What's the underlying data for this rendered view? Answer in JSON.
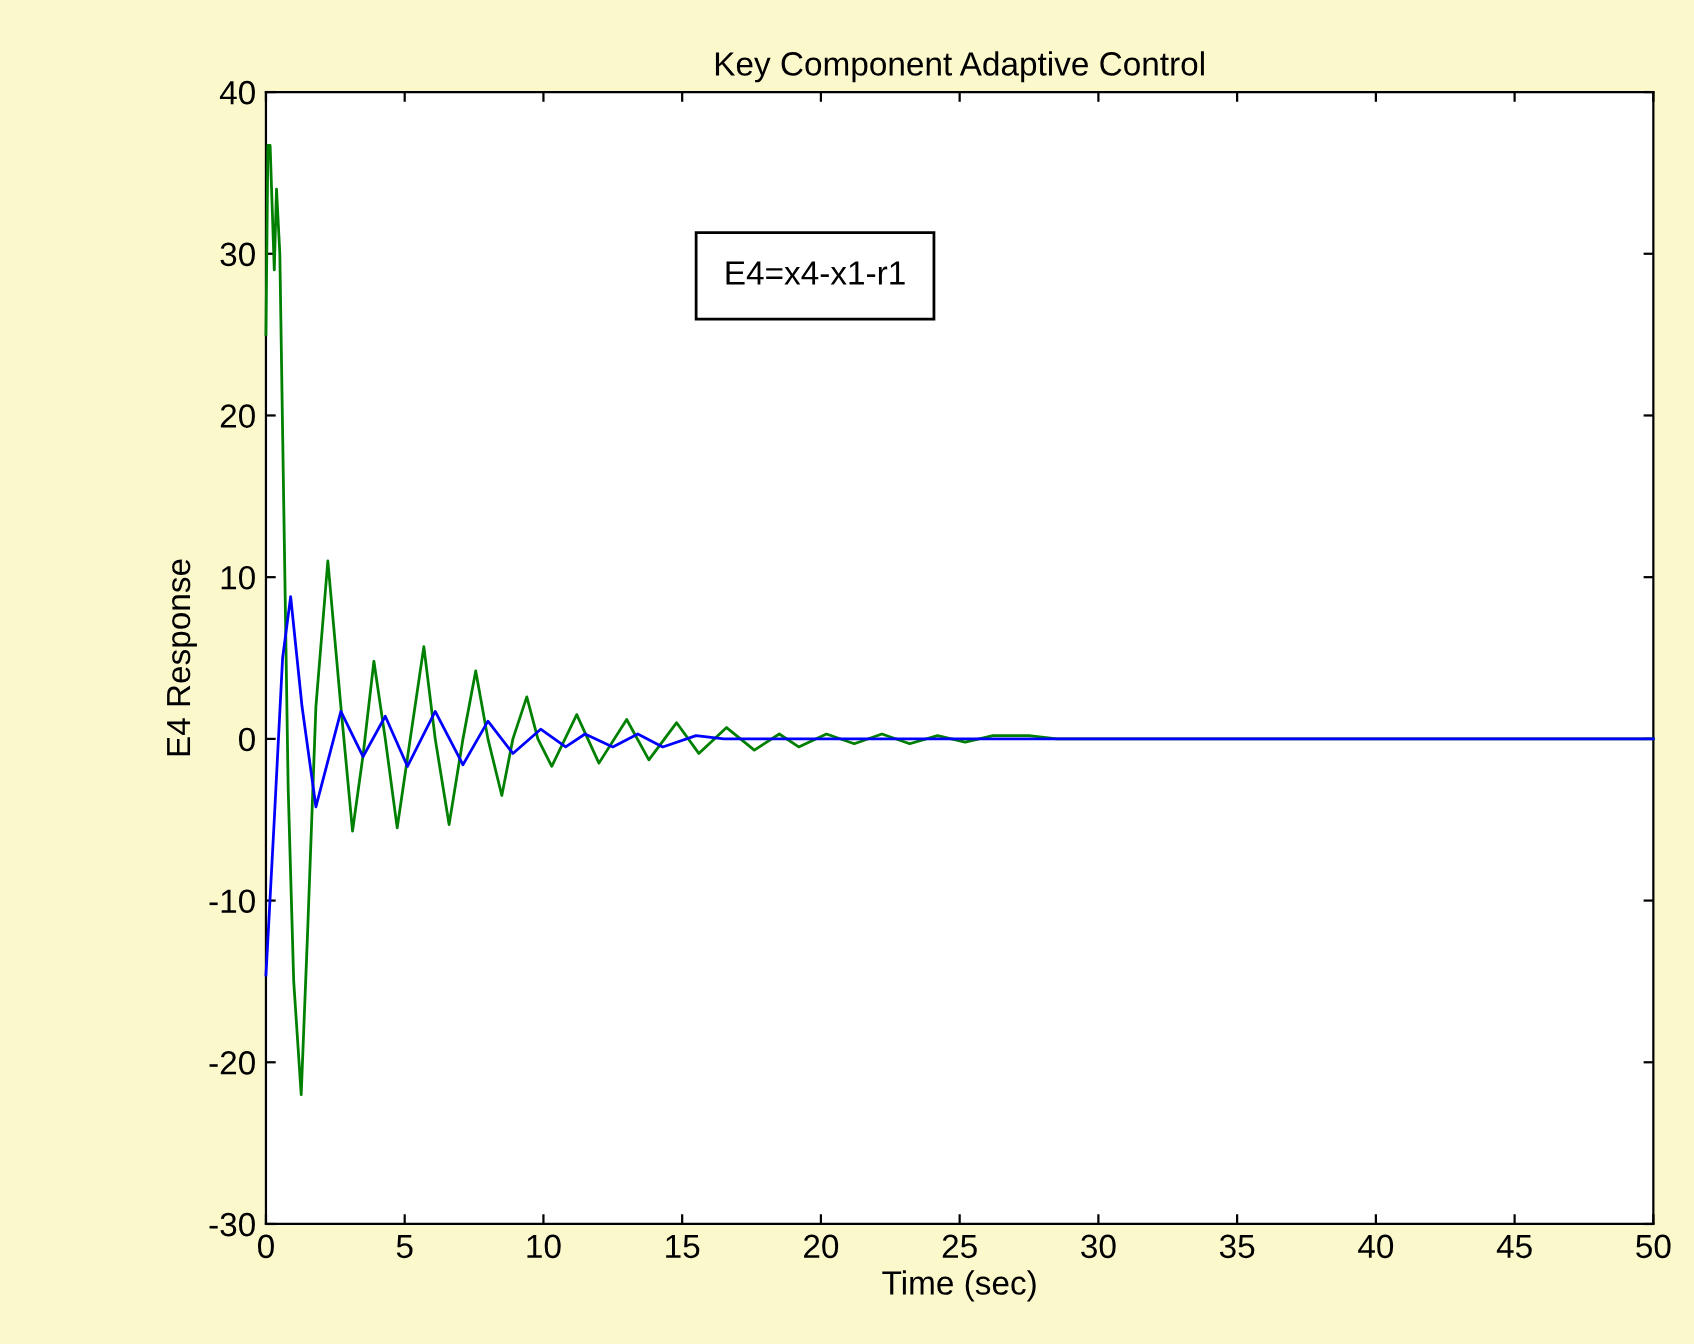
{
  "chart_data": {
    "type": "line",
    "title": "Key Component Adaptive Control",
    "xlabel": "Time (sec)",
    "ylabel": "E4 Response",
    "annotations": [
      "E4=x4-x1-r1"
    ],
    "series": [
      {
        "color": "#008000",
        "x": [
          0,
          0.07,
          0.15,
          0.3,
          0.38,
          0.5,
          0.6,
          0.8,
          1.0,
          1.27,
          1.5,
          1.8,
          2.23,
          2.7,
          3.12,
          3.5,
          3.89,
          4.3,
          4.73,
          5.2,
          5.69,
          6.1,
          6.6,
          7.1,
          7.56,
          8.0,
          8.5,
          8.9,
          9.4,
          9.8,
          10.3,
          11.2,
          12.0,
          13.0,
          13.8,
          14.8,
          15.6,
          16.6,
          17.6,
          18.5,
          19.2,
          20.2,
          21.2,
          22.2,
          23.2,
          24.2,
          25.2,
          26.2,
          27.5,
          28.5,
          50
        ],
        "values": [
          25,
          36.7,
          36.7,
          29,
          34,
          30,
          19,
          -3,
          -15,
          -22,
          -12,
          2,
          11,
          2,
          -5.7,
          -1,
          4.8,
          0,
          -5.5,
          0,
          5.7,
          0,
          -5.3,
          0,
          4.2,
          0,
          -3.5,
          0,
          2.6,
          0,
          -1.7,
          1.5,
          -1.5,
          1.2,
          -1.3,
          1.0,
          -0.9,
          0.7,
          -0.7,
          0.3,
          -0.5,
          0.3,
          -0.3,
          0.3,
          -0.3,
          0.2,
          -0.2,
          0.2,
          0.2,
          0,
          0
        ]
      },
      {
        "color": "#0000ff",
        "x": [
          0,
          0.3,
          0.6,
          0.89,
          1.3,
          1.8,
          2.7,
          3.5,
          4.3,
          5.1,
          6.1,
          7.1,
          8.0,
          8.9,
          9.9,
          10.8,
          11.5,
          12.5,
          13.4,
          14.3,
          15.5,
          16.5,
          50
        ],
        "values": [
          -14.6,
          -5,
          5,
          8.8,
          2,
          -4.2,
          1.7,
          -1.1,
          1.4,
          -1.7,
          1.7,
          -1.6,
          1.1,
          -0.9,
          0.6,
          -0.5,
          0.3,
          -0.5,
          0.3,
          -0.5,
          0.2,
          0,
          0
        ]
      }
    ],
    "xlim": [
      0,
      50
    ],
    "xticks": [
      0,
      5,
      10,
      15,
      20,
      25,
      30,
      35,
      40,
      45,
      50
    ],
    "ylim": [
      -30,
      40
    ],
    "yticks": [
      -30,
      -20,
      -10,
      0,
      10,
      20,
      30,
      40
    ],
    "grid": false
  }
}
